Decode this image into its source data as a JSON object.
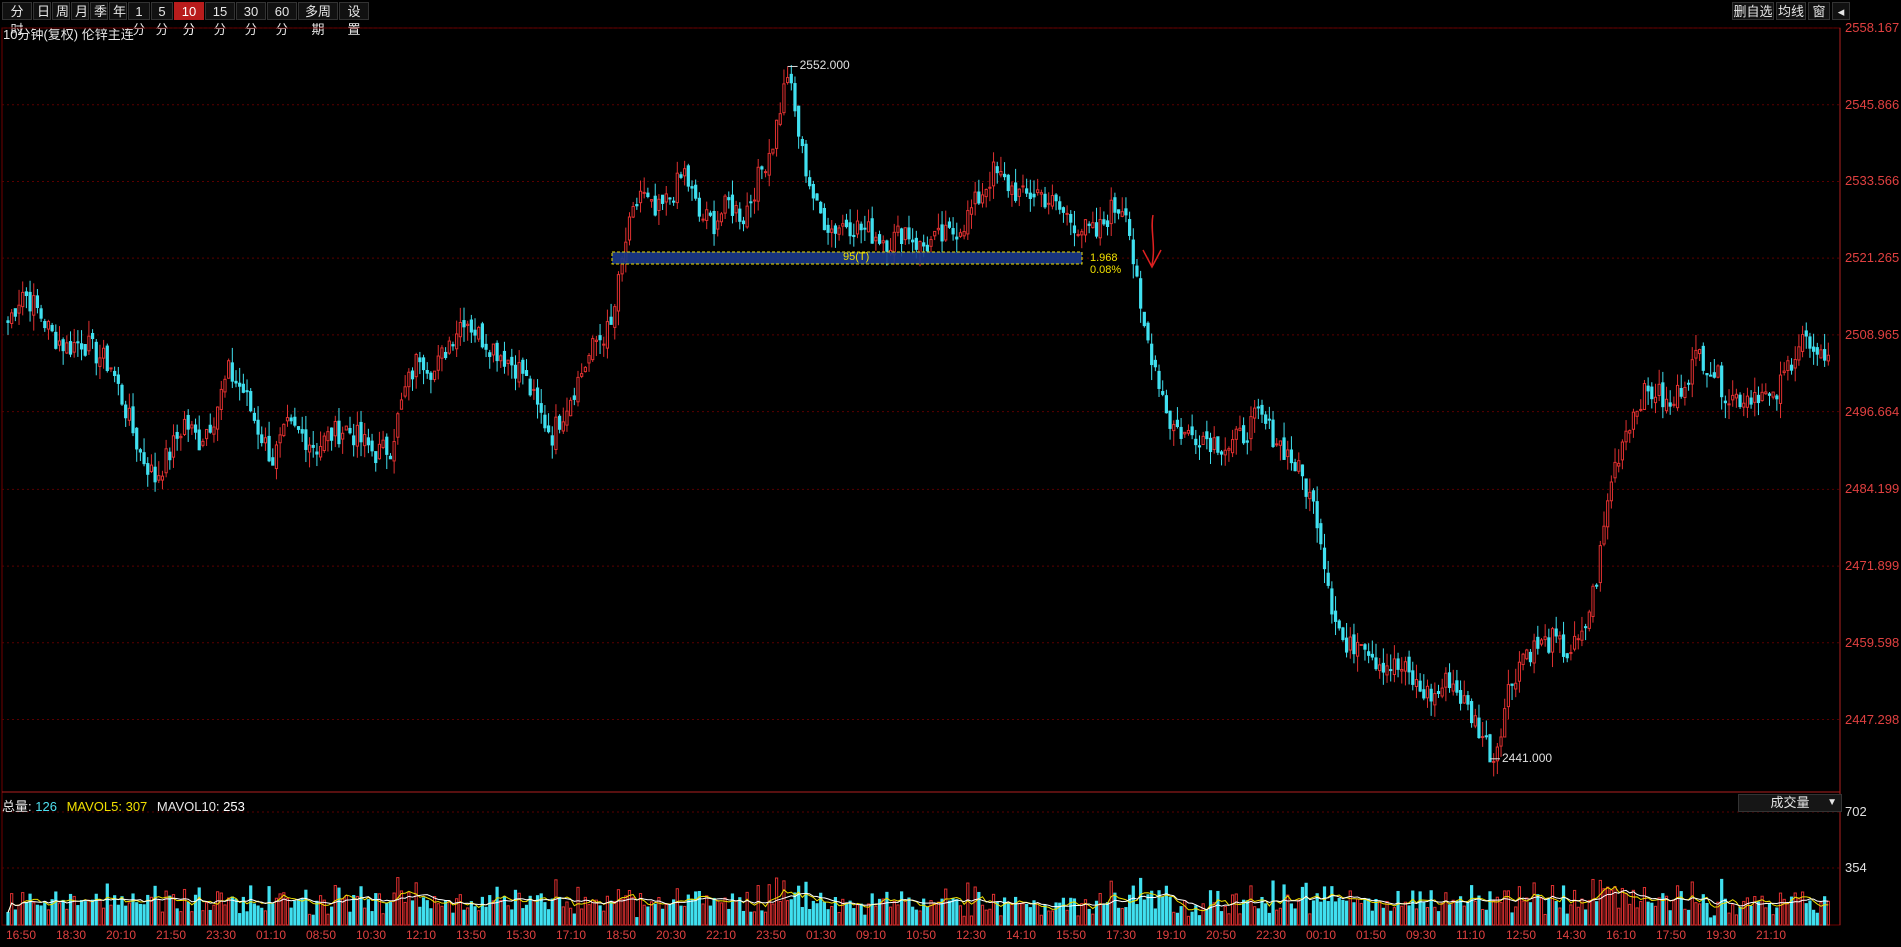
{
  "toolbar": {
    "left_tabs": [
      "分时",
      "日",
      "周",
      "月",
      "季",
      "年",
      "1分",
      "5分",
      "10分",
      "15分",
      "30分",
      "60分",
      "多周期",
      "设置"
    ],
    "active_tab": "10分",
    "right_buttons": [
      "删自选",
      "均线",
      "窗"
    ],
    "back_icon": "back-arrow-icon"
  },
  "subtitle": "10分钟(复权)  伦锌主连",
  "price_axis": {
    "labels": [
      "2558.167",
      "2545.866",
      "2533.566",
      "2521.265",
      "2508.965",
      "2496.664",
      "2484.199",
      "2471.899",
      "2459.598",
      "2447.298"
    ],
    "min": 2436.0,
    "max": 2558.167
  },
  "time_axis": {
    "labels": [
      "16:50",
      "18:30",
      "20:10",
      "21:50",
      "23:30",
      "01:10",
      "08:50",
      "10:30",
      "12:10",
      "13:50",
      "15:30",
      "17:10",
      "18:50",
      "20:30",
      "22:10",
      "23:50",
      "01:30",
      "09:10",
      "10:50",
      "12:30",
      "14:10",
      "15:50",
      "17:30",
      "19:10",
      "20:50",
      "22:30",
      "00:10",
      "01:50",
      "09:30",
      "11:10",
      "12:50",
      "14:30",
      "16:10",
      "17:50",
      "19:30",
      "21:10"
    ]
  },
  "annotations": {
    "high_label": "2552.000",
    "low_label": "2441.000",
    "box_center_label": "95(T)",
    "box_right_top": "1.968",
    "box_right_bottom": "0.08%"
  },
  "volume_panel": {
    "total_label": "总量:",
    "total_value": "126",
    "mavol5_label": "MAVOL5:",
    "mavol5_value": "307",
    "mavol10_label": "MAVOL10:",
    "mavol10_value": "253",
    "dropdown_label": "成交量",
    "axis_labels": [
      "702",
      "354"
    ]
  },
  "colors": {
    "up": "#e03030",
    "down": "#40e0f0",
    "grid": "#5a0000",
    "axis_text": "#e04040",
    "ma5": "#f0e000",
    "ma10": "#ffffff",
    "box_fill": "#1b3a8a",
    "box_border": "#f0e000",
    "arrow": "#e02020"
  },
  "chart_data": {
    "type": "candlestick",
    "title": "10分钟(复权)  伦锌主连",
    "ylim": [
      2436.0,
      2558.167
    ],
    "high": 2552.0,
    "low": 2441.0,
    "close_path": [
      2511,
      2516,
      2513,
      2509,
      2507,
      2508,
      2506,
      2504,
      2497,
      2490,
      2486,
      2490,
      2495,
      2492,
      2496,
      2503,
      2500,
      2494,
      2489,
      2494,
      2493,
      2491,
      2493,
      2494,
      2492,
      2490,
      2491,
      2500,
      2506,
      2503,
      2508,
      2512,
      2509,
      2507,
      2505,
      2503,
      2497,
      2493,
      2498,
      2503,
      2508,
      2510,
      2524,
      2532,
      2528,
      2531,
      2535,
      2528,
      2527,
      2530,
      2528,
      2534,
      2540,
      2551,
      2538,
      2529,
      2526,
      2527,
      2526,
      2525,
      2524,
      2526,
      2523,
      2524,
      2525,
      2527,
      2531,
      2535,
      2533,
      2531,
      2532,
      2530,
      2528,
      2526,
      2525,
      2529,
      2530,
      2512,
      2504,
      2495,
      2493,
      2493,
      2492,
      2491,
      2493,
      2496,
      2493,
      2490,
      2486,
      2480,
      2466,
      2458,
      2461,
      2457,
      2456,
      2455,
      2452,
      2451,
      2454,
      2450,
      2446,
      2441,
      2452,
      2458,
      2459,
      2460,
      2458,
      2460,
      2470,
      2486,
      2494,
      2499,
      2500,
      2497,
      2502,
      2506,
      2503,
      2499,
      2499,
      2500,
      2498,
      2504,
      2509,
      2504,
      2508
    ]
  }
}
